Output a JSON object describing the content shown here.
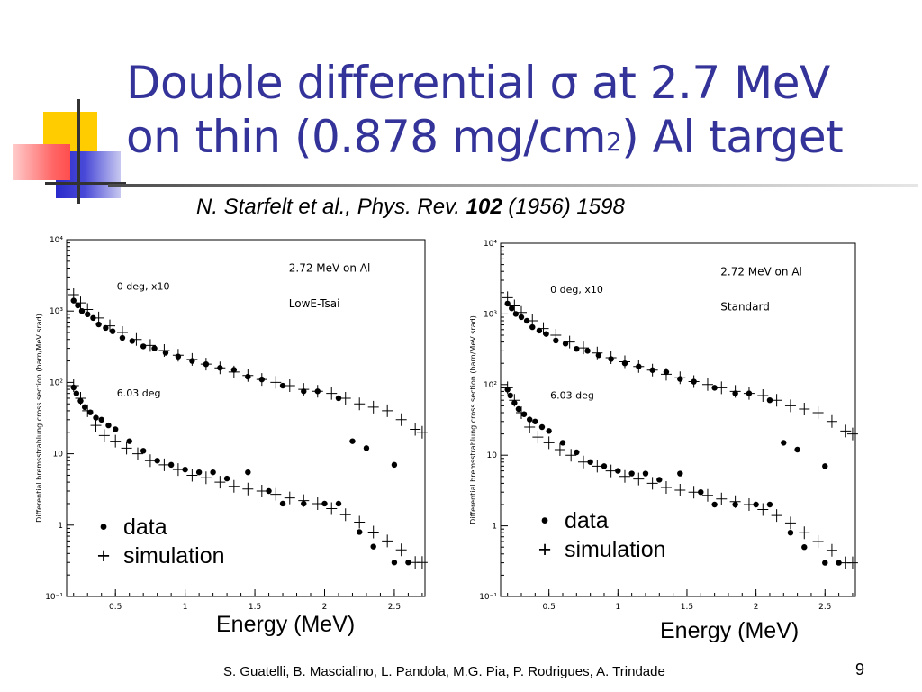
{
  "slide": {
    "title_line1": "Double differential σ at 2.7 MeV",
    "title_line2_a": "on thin (0.878 mg/cm",
    "title_line2_sup": "2",
    "title_line2_b": ") Al target",
    "citation_authors": "N. Starfelt et al., Phys. Rev.",
    "citation_volume": "102",
    "citation_rest": "(1956) 1598",
    "footer": "S. Guatelli, B. Mascialino, L. Pandola, M.G. Pia, P. Rodrigues, A. Trindade",
    "page_number": "9"
  },
  "colors": {
    "title": "#333399",
    "deco_yellow": "#ffcc00",
    "deco_blue": "#3333cc",
    "deco_red": "#ff6666"
  },
  "chart_data": [
    {
      "type": "scatter",
      "title": "",
      "xlabel": "Energy (MeV)",
      "ylabel": "Differential bremsstrahlung cross section (barn/MeV srad)",
      "xlim": [
        0.15,
        2.72
      ],
      "ylim": [
        0.1,
        10000
      ],
      "yscale": "log",
      "x_ticks": [
        "0.5",
        "1",
        "1.5",
        "2",
        "2.5"
      ],
      "y_ticks": [
        "10⁻¹",
        "1",
        "10",
        "10²",
        "10³",
        "10⁴"
      ],
      "annotations": [
        "2.72 MeV on Al",
        "LowE-Tsai",
        "0 deg, x10",
        "6.03 deg"
      ],
      "legend": {
        "data": "data",
        "simulation": "simulation",
        "data_symbol": "•",
        "sim_symbol": "+"
      },
      "series": [
        {
          "name": "data",
          "group": "0 deg, x10",
          "x": [
            0.2,
            0.23,
            0.26,
            0.3,
            0.34,
            0.38,
            0.43,
            0.48,
            0.55,
            0.62,
            0.7,
            0.78,
            0.86,
            0.95,
            1.05,
            1.15,
            1.25,
            1.35,
            1.45,
            1.55,
            1.7,
            1.85,
            1.95,
            2.1,
            2.2,
            2.3,
            2.5
          ],
          "y": [
            1400,
            1200,
            1000,
            900,
            800,
            650,
            580,
            520,
            420,
            380,
            320,
            300,
            260,
            230,
            200,
            180,
            160,
            150,
            120,
            110,
            90,
            75,
            75,
            60,
            15,
            12,
            7
          ]
        },
        {
          "name": "simulation",
          "group": "0 deg, x10",
          "x": [
            0.2,
            0.25,
            0.3,
            0.38,
            0.46,
            0.55,
            0.65,
            0.75,
            0.85,
            0.95,
            1.05,
            1.15,
            1.25,
            1.35,
            1.45,
            1.55,
            1.65,
            1.75,
            1.85,
            1.95,
            2.05,
            2.15,
            2.25,
            2.35,
            2.45,
            2.55,
            2.65,
            2.7
          ],
          "y": [
            1700,
            1300,
            1050,
            800,
            620,
            500,
            400,
            330,
            280,
            240,
            210,
            180,
            160,
            140,
            125,
            110,
            100,
            90,
            80,
            75,
            70,
            60,
            50,
            45,
            40,
            30,
            22,
            20
          ]
        },
        {
          "name": "data",
          "group": "6.03 deg",
          "x": [
            0.2,
            0.22,
            0.25,
            0.28,
            0.32,
            0.36,
            0.4,
            0.45,
            0.5,
            0.6,
            0.7,
            0.8,
            0.9,
            1.0,
            1.1,
            1.2,
            1.3,
            1.45,
            1.6,
            1.7,
            1.85,
            2.0,
            2.1,
            2.25,
            2.35,
            2.5,
            2.6
          ],
          "y": [
            85,
            70,
            55,
            45,
            38,
            32,
            30,
            25,
            22,
            15,
            11,
            8,
            7,
            6,
            5.5,
            5.5,
            4.5,
            5.5,
            3,
            2,
            2,
            2,
            2,
            0.8,
            0.5,
            0.3,
            0.3
          ]
        },
        {
          "name": "simulation",
          "group": "6.03 deg",
          "x": [
            0.2,
            0.25,
            0.3,
            0.36,
            0.42,
            0.5,
            0.58,
            0.66,
            0.75,
            0.85,
            0.95,
            1.05,
            1.15,
            1.25,
            1.35,
            1.45,
            1.55,
            1.65,
            1.75,
            1.85,
            1.95,
            2.05,
            2.15,
            2.25,
            2.35,
            2.45,
            2.55,
            2.65,
            2.7
          ],
          "y": [
            90,
            60,
            40,
            25,
            18,
            15,
            12,
            10,
            8,
            7,
            6,
            5,
            4.6,
            4,
            3.5,
            3.2,
            3,
            2.7,
            2.4,
            2.2,
            2,
            1.7,
            1.4,
            1.1,
            0.8,
            0.6,
            0.45,
            0.3,
            0.3
          ]
        }
      ]
    },
    {
      "type": "scatter",
      "title": "",
      "xlabel": "Energy (MeV)",
      "ylabel": "Differential bremsstrahlung cross section (barn/MeV srad)",
      "xlim": [
        0.15,
        2.72
      ],
      "ylim": [
        0.1,
        10000
      ],
      "yscale": "log",
      "x_ticks": [
        "0.5",
        "1",
        "1.5",
        "2",
        "2.5"
      ],
      "y_ticks": [
        "10⁻¹",
        "1",
        "10",
        "10²",
        "10³",
        "10⁴"
      ],
      "annotations": [
        "2.72 MeV on Al",
        "Standard",
        "0 deg, x10",
        "6.03 deg"
      ],
      "legend": {
        "data": "data",
        "simulation": "simulation",
        "data_symbol": "•",
        "sim_symbol": "+"
      },
      "series": [
        {
          "name": "data",
          "group": "0 deg, x10",
          "x": [
            0.2,
            0.23,
            0.26,
            0.3,
            0.34,
            0.38,
            0.43,
            0.48,
            0.55,
            0.62,
            0.7,
            0.78,
            0.86,
            0.95,
            1.05,
            1.15,
            1.25,
            1.35,
            1.45,
            1.55,
            1.7,
            1.85,
            1.95,
            2.1,
            2.2,
            2.3,
            2.5
          ],
          "y": [
            1400,
            1200,
            1000,
            900,
            800,
            650,
            580,
            520,
            420,
            380,
            320,
            300,
            260,
            230,
            200,
            180,
            160,
            150,
            120,
            110,
            90,
            75,
            75,
            60,
            15,
            12,
            7
          ]
        },
        {
          "name": "simulation",
          "group": "0 deg, x10",
          "x": [
            0.2,
            0.25,
            0.3,
            0.38,
            0.46,
            0.55,
            0.65,
            0.75,
            0.85,
            0.95,
            1.05,
            1.15,
            1.25,
            1.35,
            1.45,
            1.55,
            1.65,
            1.75,
            1.85,
            1.95,
            2.05,
            2.15,
            2.25,
            2.35,
            2.45,
            2.55,
            2.65,
            2.7
          ],
          "y": [
            1700,
            1300,
            1050,
            800,
            620,
            500,
            400,
            330,
            280,
            240,
            210,
            180,
            160,
            140,
            125,
            110,
            100,
            90,
            80,
            75,
            70,
            60,
            50,
            45,
            40,
            30,
            22,
            20
          ]
        },
        {
          "name": "data",
          "group": "6.03 deg",
          "x": [
            0.2,
            0.22,
            0.25,
            0.28,
            0.32,
            0.36,
            0.4,
            0.45,
            0.5,
            0.6,
            0.7,
            0.8,
            0.9,
            1.0,
            1.1,
            1.2,
            1.3,
            1.45,
            1.6,
            1.7,
            1.85,
            2.0,
            2.1,
            2.25,
            2.35,
            2.5,
            2.6
          ],
          "y": [
            85,
            70,
            55,
            45,
            38,
            32,
            30,
            25,
            22,
            15,
            11,
            8,
            7,
            6,
            5.5,
            5.5,
            4.5,
            5.5,
            3,
            2,
            2,
            2,
            2,
            0.8,
            0.5,
            0.3,
            0.3
          ]
        },
        {
          "name": "simulation",
          "group": "6.03 deg",
          "x": [
            0.2,
            0.25,
            0.3,
            0.36,
            0.42,
            0.5,
            0.58,
            0.66,
            0.75,
            0.85,
            0.95,
            1.05,
            1.15,
            1.25,
            1.35,
            1.45,
            1.55,
            1.65,
            1.75,
            1.85,
            1.95,
            2.05,
            2.15,
            2.25,
            2.35,
            2.45,
            2.55,
            2.65,
            2.7
          ],
          "y": [
            90,
            60,
            40,
            25,
            18,
            15,
            12,
            10,
            8,
            7,
            6,
            5,
            4.6,
            4,
            3.5,
            3.2,
            3,
            2.7,
            2.4,
            2.2,
            2,
            1.7,
            1.4,
            1.1,
            0.8,
            0.6,
            0.45,
            0.3,
            0.3
          ]
        }
      ]
    }
  ]
}
